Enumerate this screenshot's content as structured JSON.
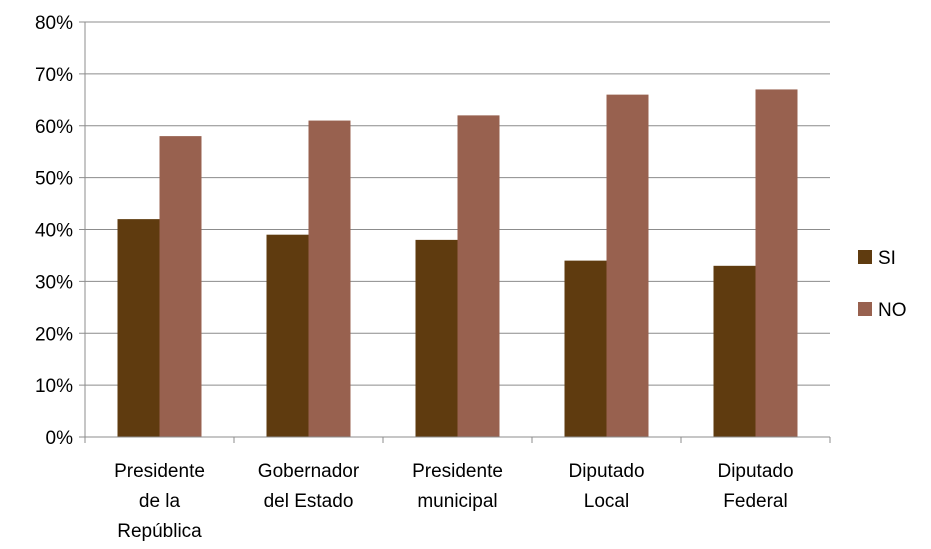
{
  "chart_data": {
    "type": "bar",
    "categories": [
      [
        "Presidente",
        "de la",
        "República"
      ],
      [
        "Gobernador",
        "del Estado"
      ],
      [
        "Presidente",
        "municipal"
      ],
      [
        "Diputado",
        "Local"
      ],
      [
        "Diputado",
        "Federal"
      ]
    ],
    "series": [
      {
        "name": "SI",
        "color": "#5f3b0f",
        "values": [
          42,
          39,
          38,
          34,
          33
        ]
      },
      {
        "name": "NO",
        "color": "#98614f",
        "values": [
          58,
          61,
          62,
          66,
          67
        ]
      }
    ],
    "ylim": [
      0,
      80
    ],
    "yticks": [
      "0%",
      "10%",
      "20%",
      "30%",
      "40%",
      "50%",
      "60%",
      "70%",
      "80%"
    ],
    "grid": true,
    "legend_position": "right"
  }
}
